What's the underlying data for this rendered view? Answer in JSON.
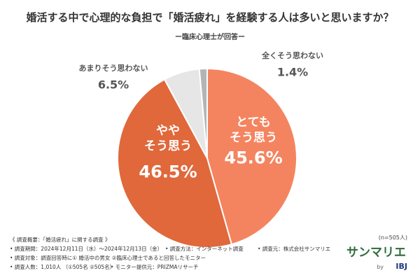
{
  "chart_data": {
    "type": "pie",
    "title": "婚活する中で心理的な負担で「婚活疲れ」を経験する人は多いと思いますか？",
    "subtitle": "ー臨床心理士が回答ー",
    "categories": [
      "とても\nそう思う",
      "やや\nそう思う",
      "あまりそう思わない",
      "全くそう思わない"
    ],
    "values": [
      45.6,
      46.5,
      6.5,
      1.4
    ],
    "value_labels": [
      "45.6%",
      "46.5%",
      "6.5%",
      "1.4%"
    ],
    "colors": [
      "#f4845f",
      "#e0683b",
      "#e6e6e6",
      "#b4b4b4"
    ],
    "note": "(n=505人)"
  },
  "footer": {
    "heading": "《 調査概要：「婚活疲れ」に関する調査 》",
    "items": [
      "• 調査期間：2024年12月11日（水）～2024年12月13日（金）",
      "• 調査方法：インターネット調査",
      "• 調査元：株式会社サンマリエ",
      "• 調査対象：調査回答時に① 婚活中の男女 ②臨床心理士であると回答したモニター",
      "• 調査人数：1,010人 （①505名 ②505名）",
      "• モニター提供元：PRIZMAリサーチ"
    ]
  },
  "logo": {
    "brand": "サンマリエ",
    "by": "by",
    "parent": "IBJ"
  }
}
